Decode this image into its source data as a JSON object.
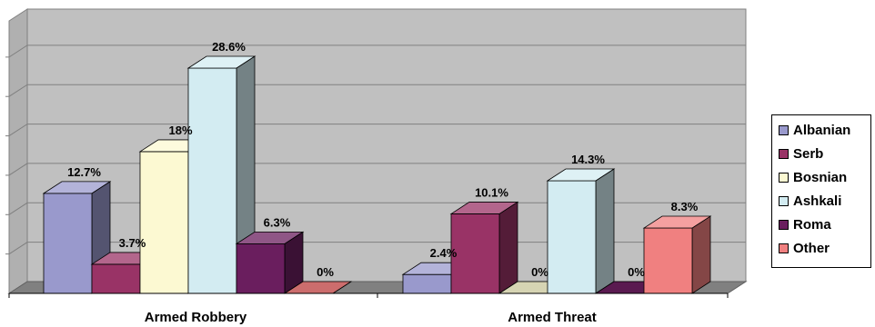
{
  "chart_data": {
    "type": "bar",
    "title": "",
    "xlabel": "",
    "ylabel": "",
    "categories": [
      "Armed Robbery",
      "Armed Threat"
    ],
    "series": [
      {
        "name": "Albanian",
        "values": [
          12.7,
          2.4
        ],
        "labels": [
          "12.7%",
          "2.4%"
        ],
        "color": "#9999cc"
      },
      {
        "name": "Serb",
        "values": [
          3.7,
          10.1
        ],
        "labels": [
          "3.7%",
          "10.1%"
        ],
        "color": "#993366"
      },
      {
        "name": "Bosnian",
        "values": [
          18,
          0
        ],
        "labels": [
          "18%",
          "0%"
        ],
        "color": "#fcf9d2"
      },
      {
        "name": "Ashkali",
        "values": [
          28.6,
          14.3
        ],
        "labels": [
          "28.6%",
          "14.3%"
        ],
        "color": "#d3ecf2"
      },
      {
        "name": "Roma",
        "values": [
          6.3,
          0
        ],
        "labels": [
          "6.3%",
          "0%"
        ],
        "color": "#6a1e5e"
      },
      {
        "name": "Other",
        "values": [
          0,
          8.3
        ],
        "labels": [
          "0%",
          "8.3%"
        ],
        "color": "#f08080"
      }
    ],
    "ylim": [
      0,
      35
    ],
    "grid": true,
    "legend_position": "right",
    "chart_style": "3d-clustered-bar",
    "wall_color": "#c0c0c0",
    "floor_color": "#808080"
  }
}
